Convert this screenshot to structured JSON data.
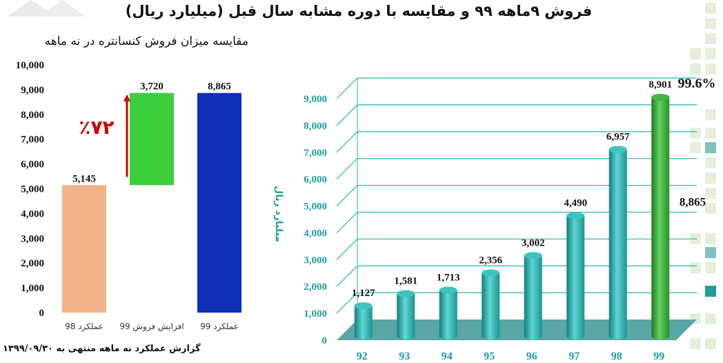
{
  "title": "فروش ۹ماهه ۹۹  و مقایسه با دوره مشابه سال قبل (میلیارد ریال)",
  "footer": "گزارش عملکرد نه ماهه منتهی به ۱۳۹۹/۰۹/۳۰",
  "colors": {
    "bar98": "#f2b38b",
    "increase": "#3cce3c",
    "bar99": "#0e2fb8",
    "arrow": "#cc0000",
    "cylinder": "#2bb0ae",
    "cylinder_highlight": "#2aa02a",
    "axis_text_teal": "#1f9e9c",
    "deco_light": "#e3efdb",
    "deco_teal": "#1f9e9c"
  },
  "chart_data": [
    {
      "type": "bar",
      "subtype": "waterfall",
      "title": "مقایسه میزان فروش کنسانتره در نه ماهه",
      "categories": [
        "عملکرد 98",
        "افزایش فروش 99",
        "عملکرد 99"
      ],
      "values": [
        5145,
        3720,
        8865
      ],
      "value_labels": [
        "5,145",
        "3,720",
        "8,865"
      ],
      "increase_range": [
        5145,
        8865
      ],
      "annotation": "٪۷۲",
      "ylim": [
        0,
        10000
      ],
      "yticks": [
        "0",
        "1,000",
        "2,000",
        "3,000",
        "4,000",
        "5,000",
        "6,000",
        "7,000",
        "8,000",
        "9,000",
        "10,000"
      ],
      "ytick_values": [
        0,
        1000,
        2000,
        3000,
        4000,
        5000,
        6000,
        7000,
        8000,
        9000,
        10000
      ],
      "grid": false,
      "xlabel": "",
      "ylabel": ""
    },
    {
      "type": "bar",
      "subtype": "3d-cylinder",
      "categories": [
        "92",
        "93",
        "94",
        "95",
        "96",
        "97",
        "98",
        "99"
      ],
      "values": [
        1127,
        1581,
        1713,
        2356,
        3002,
        4490,
        6957,
        8901
      ],
      "value_labels": [
        "1,127",
        "1,581",
        "1,713",
        "2,356",
        "3,002",
        "4,490",
        "6,957",
        "8,901"
      ],
      "ylim": [
        0,
        9000
      ],
      "yticks": [
        "0",
        "1,000",
        "2,000",
        "3,000",
        "4,000",
        "5,000",
        "6,000",
        "7,000",
        "8,000",
        "9,000"
      ],
      "ytick_values": [
        0,
        1000,
        2000,
        3000,
        4000,
        5000,
        6000,
        7000,
        8000,
        9000
      ],
      "ylabel": "میلیارد ریال",
      "xlabel": "",
      "grid": true,
      "annotations": [
        "99.6%",
        "8,865"
      ]
    }
  ]
}
